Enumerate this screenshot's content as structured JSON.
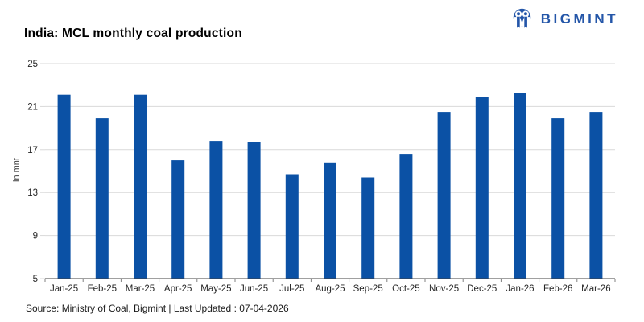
{
  "header": {
    "title": "India: MCL monthly coal production"
  },
  "logo": {
    "brand": "BIGMINT",
    "color": "#2456A8",
    "icon": "bigmint-circle-m-icon"
  },
  "chart_data": {
    "type": "bar",
    "title": "India: MCL monthly coal production",
    "categories": [
      "Jan-25",
      "Feb-25",
      "Mar-25",
      "Apr-25",
      "May-25",
      "Jun-25",
      "Jul-25",
      "Aug-25",
      "Sep-25",
      "Oct-25",
      "Nov-25",
      "Dec-25",
      "Jan-26",
      "Feb-26",
      "Mar-26"
    ],
    "values": [
      22.1,
      19.9,
      22.1,
      16.0,
      17.8,
      17.7,
      14.7,
      15.8,
      14.4,
      16.6,
      20.5,
      21.9,
      22.3,
      19.9,
      20.5
    ],
    "xlabel": "",
    "ylabel": "in mnt",
    "ylim": [
      5,
      25
    ],
    "yticks": [
      25,
      21,
      17,
      13,
      9,
      5
    ],
    "grid": true,
    "legend": false,
    "bar_color": "#0B51A5",
    "gridline_color": "#D9D9D9",
    "axis_color": "#404040",
    "tick_label_color": "#262626"
  },
  "footer": {
    "text": "Source: Ministry of Coal, Bigmint | Last Updated : 07-04-2026"
  }
}
